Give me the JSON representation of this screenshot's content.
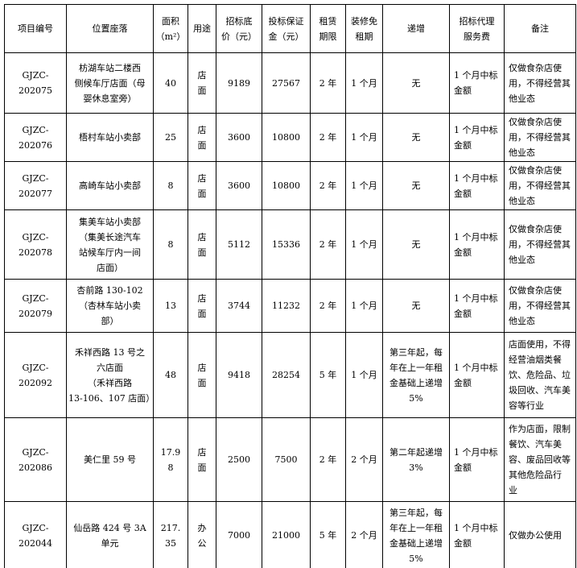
{
  "table": {
    "headers": [
      "项目编号",
      "位置座落",
      "面积\n（m²）",
      "用途",
      "招标底\n价（元）",
      "投标保证\n金（元）",
      "租赁\n期限",
      "装修免\n租期",
      "递增",
      "招标代理\n服务费",
      "备注"
    ],
    "rows": [
      [
        "GJZC-202075",
        "枋湖车站二楼西\n侧候车厅店面（母\n婴休息室旁）",
        "40",
        "店\n面",
        "9189",
        "27567",
        "2 年",
        "1 个月",
        "无",
        "1 个月中标\n金额",
        "仅做食杂店使\n用，不得经营其\n他业态"
      ],
      [
        "GJZC-202076",
        "梧村车站小卖部",
        "25",
        "店\n面",
        "3600",
        "10800",
        "2 年",
        "1 个月",
        "无",
        "1 个月中标\n金额",
        "仅做食杂店使\n用，不得经营其\n他业态"
      ],
      [
        "GJZC-202077",
        "高崎车站小卖部",
        "8",
        "店\n面",
        "3600",
        "10800",
        "2 年",
        "1 个月",
        "无",
        "1 个月中标\n金额",
        "仅做食杂店使\n用，不得经营其\n他业态"
      ],
      [
        "GJZC-202078",
        "集美车站小卖部\n（集美长途汽车\n站候车厅内一间\n店面）",
        "8",
        "店\n面",
        "5112",
        "15336",
        "2 年",
        "1 个月",
        "无",
        "1 个月中标\n金额",
        "仅做食杂店使\n用，不得经营其\n他业态"
      ],
      [
        "GJZC-202079",
        "杏前路 130-102\n（杏林车站小卖\n部）",
        "13",
        "店\n面",
        "3744",
        "11232",
        "2 年",
        "1 个月",
        "无",
        "1 个月中标\n金额",
        "仅做食杂店使\n用，不得经营其\n他业态"
      ],
      [
        "GJZC-202092",
        "禾祥西路 13 号之\n六店面\n（禾祥西路\n13-106、107 店面）",
        "48",
        "店\n面",
        "9418",
        "28254",
        "5 年",
        "1 个月",
        "第三年起，每\n年在上一年租\n金基础上递增\n5%",
        "1 个月中标\n金额",
        "店面使用，不得\n经营油烟类餐\n饮、危险品、垃\n圾回收、汽车美\n容等行业"
      ],
      [
        "GJZC-202086",
        "美仁里 59 号",
        "17.9\n8",
        "店\n面",
        "2500",
        "7500",
        "2 年",
        "2 个月",
        "第二年起递增\n3%",
        "1 个月中标\n金额",
        "作为店面，限制\n餐饮、汽车美\n容、废品回收等\n其他危险品行\n业"
      ],
      [
        "GJZC-202044",
        "仙岳路 424 号 3A\n单元",
        "217.\n35",
        "办\n公",
        "7000",
        "21000",
        "5 年",
        "2 个月",
        "第三年起，每\n年在上一年租\n金基础上递增\n5%",
        "1 个月中标\n金额",
        "仅做办公使用"
      ]
    ]
  }
}
